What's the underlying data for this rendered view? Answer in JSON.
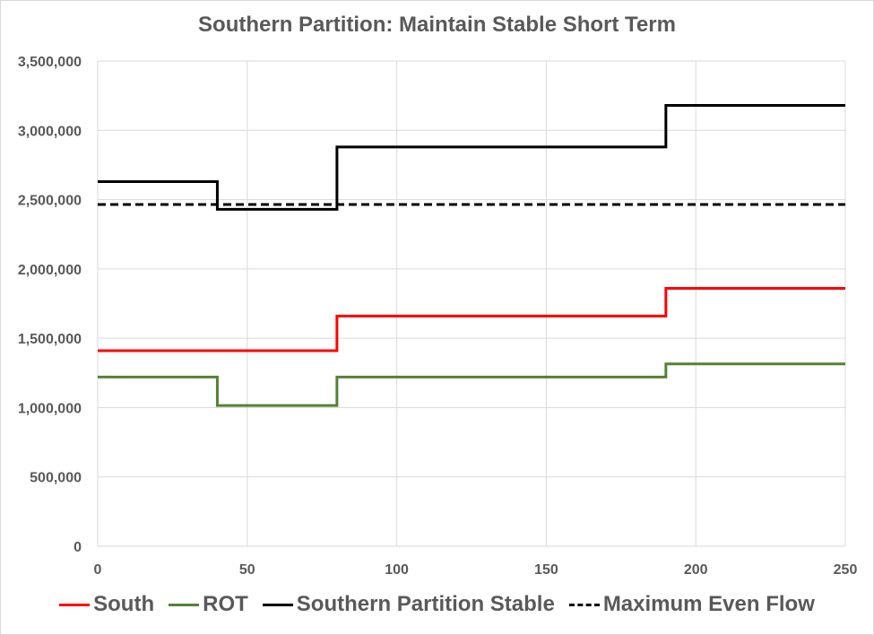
{
  "chart_data": {
    "type": "line",
    "title": "Southern Partition: Maintain Stable Short Term",
    "xlabel": "",
    "ylabel": "",
    "xlim": [
      0,
      250
    ],
    "ylim": [
      0,
      3500000
    ],
    "x_ticks": [
      "0",
      "50",
      "100",
      "150",
      "200",
      "250"
    ],
    "y_ticks": [
      "0",
      "500,000",
      "1,000,000",
      "1,500,000",
      "2,000,000",
      "2,500,000",
      "3,000,000",
      "3,500,000"
    ],
    "grid": true,
    "legend_position": "bottom",
    "series": [
      {
        "name": "South",
        "color": "#ff0000",
        "style": "step",
        "x": [
          0,
          40,
          80,
          190,
          250
        ],
        "y": [
          1410000,
          1410000,
          1660000,
          1860000,
          1860000
        ]
      },
      {
        "name": "ROT",
        "color": "#548235",
        "style": "step",
        "x": [
          0,
          40,
          80,
          190,
          250
        ],
        "y": [
          1220000,
          1015000,
          1220000,
          1315000,
          1315000
        ]
      },
      {
        "name": "Southern Partition Stable",
        "color": "#000000",
        "style": "step",
        "x": [
          0,
          40,
          80,
          190,
          250
        ],
        "y": [
          2630000,
          2430000,
          2880000,
          3180000,
          3180000
        ]
      },
      {
        "name": "Maximum Even Flow",
        "color": "#000000",
        "style": "dashed",
        "x": [
          0,
          250
        ],
        "y": [
          2465000,
          2465000
        ]
      }
    ]
  }
}
